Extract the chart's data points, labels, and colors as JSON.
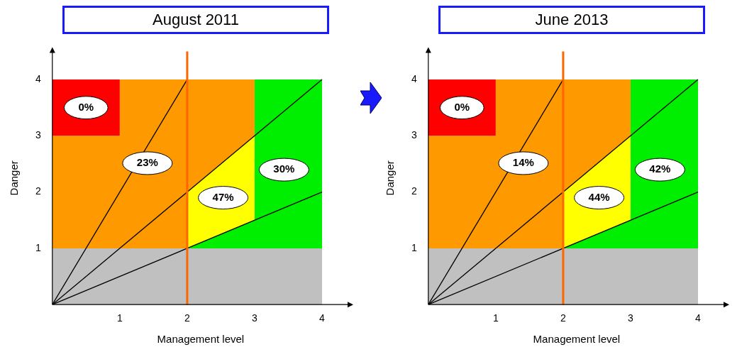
{
  "chart_data": [
    {
      "type": "line",
      "title": "August 2011",
      "xlabel": "Management level",
      "ylabel": "Danger",
      "xlim": [
        0,
        4.4
      ],
      "ylim": [
        0,
        4.5
      ],
      "xticks": [
        1,
        2,
        3,
        4
      ],
      "yticks": [
        1,
        2,
        3,
        4
      ],
      "grid": false,
      "legend": false,
      "series": [
        {
          "type": "area",
          "color": "#c0c0c0",
          "x": [
            0,
            4,
            4,
            0
          ],
          "values": [
            0,
            0,
            1,
            1
          ]
        },
        {
          "type": "area",
          "name": "23%",
          "color": "#ff9900",
          "x": [
            0,
            2,
            2,
            3,
            3,
            1,
            1,
            0
          ],
          "values": [
            1,
            1,
            2,
            3,
            4,
            4,
            3,
            3
          ]
        },
        {
          "type": "area",
          "name": "0%",
          "color": "#ff0000",
          "x": [
            0,
            1,
            1,
            0
          ],
          "values": [
            3,
            3,
            4,
            4
          ]
        },
        {
          "type": "area",
          "name": "47%",
          "color": "#ffff00",
          "x": [
            2,
            3,
            3,
            2
          ],
          "values": [
            1,
            1.5,
            3,
            2
          ]
        },
        {
          "type": "area",
          "name": "30%",
          "color": "#00ee00",
          "x": [
            2,
            4,
            4,
            3,
            3
          ],
          "values": [
            1,
            1,
            4,
            4,
            1.5
          ]
        },
        {
          "type": "line",
          "color": "#000000",
          "x": [
            0,
            2
          ],
          "values": [
            0,
            4
          ]
        },
        {
          "type": "line",
          "color": "#000000",
          "x": [
            0,
            4
          ],
          "values": [
            0,
            4
          ]
        },
        {
          "type": "line",
          "color": "#000000",
          "x": [
            0,
            4
          ],
          "values": [
            0,
            2
          ]
        }
      ],
      "ref_lines": [
        {
          "axis": "x",
          "value": 2,
          "color": "#ff6600"
        }
      ]
    },
    {
      "type": "line",
      "title": "June 2013",
      "xlabel": "Management level",
      "ylabel": "Danger",
      "xlim": [
        0,
        4.4
      ],
      "ylim": [
        0,
        4.5
      ],
      "xticks": [
        1,
        2,
        3,
        4
      ],
      "yticks": [
        1,
        2,
        3,
        4
      ],
      "grid": false,
      "legend": false,
      "series": [
        {
          "type": "area",
          "color": "#c0c0c0",
          "x": [
            0,
            4,
            4,
            0
          ],
          "values": [
            0,
            0,
            1,
            1
          ]
        },
        {
          "type": "area",
          "name": "14%",
          "color": "#ff9900",
          "x": [
            0,
            2,
            2,
            3,
            3,
            1,
            1,
            0
          ],
          "values": [
            1,
            1,
            2,
            3,
            4,
            4,
            3,
            3
          ]
        },
        {
          "type": "area",
          "name": "0%",
          "color": "#ff0000",
          "x": [
            0,
            1,
            1,
            0
          ],
          "values": [
            3,
            3,
            4,
            4
          ]
        },
        {
          "type": "area",
          "name": "44%",
          "color": "#ffff00",
          "x": [
            2,
            3,
            3,
            2
          ],
          "values": [
            1,
            1.5,
            3,
            2
          ]
        },
        {
          "type": "area",
          "name": "42%",
          "color": "#00ee00",
          "x": [
            2,
            4,
            4,
            3,
            3
          ],
          "values": [
            1,
            1,
            4,
            4,
            1.5
          ]
        },
        {
          "type": "line",
          "color": "#000000",
          "x": [
            0,
            2
          ],
          "values": [
            0,
            4
          ]
        },
        {
          "type": "line",
          "color": "#000000",
          "x": [
            0,
            4
          ],
          "values": [
            0,
            4
          ]
        },
        {
          "type": "line",
          "color": "#000000",
          "x": [
            0,
            4
          ],
          "values": [
            0,
            2
          ]
        }
      ],
      "ref_lines": [
        {
          "axis": "x",
          "value": 2,
          "color": "#ff6600"
        }
      ]
    }
  ]
}
